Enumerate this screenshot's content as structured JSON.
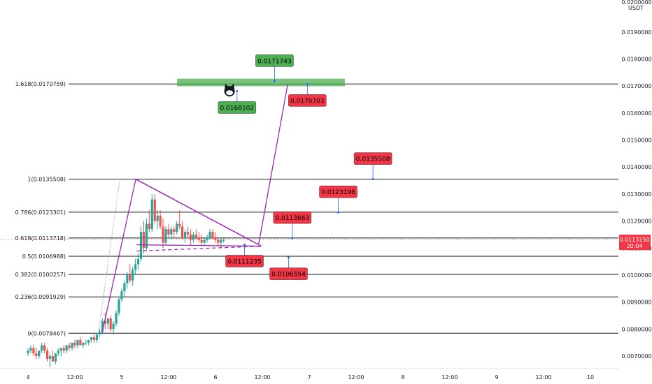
{
  "chart_data": {
    "type": "candlestick",
    "currency": "USDT",
    "current_price": "0.0113150",
    "countdown": "20:04",
    "y_ticks": [
      "0.0070000",
      "0.0080000",
      "0.0090000",
      "0.0100000",
      "0.0110000",
      "0.0120000",
      "0.0130000",
      "0.0140000",
      "0.0150000",
      "0.0160000",
      "0.0170000",
      "0.0180000",
      "0.0190000"
    ],
    "y_top_partial": "0.0200000",
    "x_ticks": [
      {
        "label": "4",
        "t": 0.0
      },
      {
        "label": "12:00",
        "t": 0.5
      },
      {
        "label": "5",
        "t": 1.0
      },
      {
        "label": "12:00",
        "t": 1.5
      },
      {
        "label": "6",
        "t": 2.0
      },
      {
        "label": "12:00",
        "t": 2.5
      },
      {
        "label": "7",
        "t": 3.0
      },
      {
        "label": "12:00",
        "t": 3.5
      },
      {
        "label": "8",
        "t": 4.0
      },
      {
        "label": "12:00",
        "t": 4.5
      },
      {
        "label": "9",
        "t": 5.0
      },
      {
        "label": "12:00",
        "t": 5.5
      },
      {
        "label": "10",
        "t": 6.0
      }
    ],
    "fib_levels": [
      {
        "label": "0(0.0078467)",
        "value": 0.0078467
      },
      {
        "label": "0.236(0.0091929)",
        "value": 0.0091929
      },
      {
        "label": "0.382(0.0100257)",
        "value": 0.0100257
      },
      {
        "label": "0.5(0.0106988)",
        "value": 0.0106988
      },
      {
        "label": "0.618(0.0113718)",
        "value": 0.0113718
      },
      {
        "label": "0.786(0.0123301)",
        "value": 0.0123301
      },
      {
        "label": "1(0.0135508)",
        "value": 0.0135508
      },
      {
        "label": "1.618(0.0170759)",
        "value": 0.0170759
      }
    ],
    "price_labels": [
      {
        "text": "0.0171743",
        "value": 0.0171743,
        "t": 2.63,
        "color": "green",
        "pos": "above"
      },
      {
        "text": "0.0168102",
        "value": 0.0168102,
        "t": 2.23,
        "color": "green",
        "pos": "below"
      },
      {
        "text": "0.0170703",
        "value": 0.0170703,
        "t": 2.98,
        "color": "red",
        "pos": "below"
      },
      {
        "text": "0.0135508",
        "value": 0.0135508,
        "t": 3.68,
        "color": "red",
        "pos": "above"
      },
      {
        "text": "0.0123198",
        "value": 0.0123198,
        "t": 3.31,
        "color": "red",
        "pos": "above"
      },
      {
        "text": "0.0113663",
        "value": 0.0113663,
        "t": 2.82,
        "color": "red",
        "pos": "above"
      },
      {
        "text": "0.0111235",
        "value": 0.0111235,
        "t": 2.31,
        "color": "red",
        "pos": "below"
      },
      {
        "text": "0.0106554",
        "value": 0.0106554,
        "t": 2.78,
        "color": "red",
        "pos": "below"
      }
    ],
    "target_zone": {
      "t0": 1.59,
      "t1": 3.38,
      "v0": 0.01699,
      "v1": 0.01727
    },
    "triangle_upper": [
      {
        "t": 1.15,
        "v": 0.01355
      },
      {
        "t": 2.49,
        "v": 0.01107
      }
    ],
    "triangle_base": [
      {
        "t": 1.16,
        "v": 0.01112
      },
      {
        "t": 2.49,
        "v": 0.01107
      }
    ],
    "triangle_lower_dashed": [
      {
        "t": 1.16,
        "v": 0.01089
      },
      {
        "t": 2.49,
        "v": 0.01107
      }
    ],
    "projection_path": [
      {
        "t": 0.79,
        "v": 0.00785
      },
      {
        "t": 1.15,
        "v": 0.01355
      },
      {
        "t": 2.46,
        "v": 0.01113
      },
      {
        "t": 2.77,
        "v": 0.01705
      }
    ],
    "dotted_fib_anchor": [
      {
        "t": 0.75,
        "v": 0.00785
      },
      {
        "t": 0.98,
        "v": 0.01355
      }
    ],
    "candles": [
      [
        0.0071,
        0.0073,
        0.007,
        0.0072
      ],
      [
        0.0072,
        0.0074,
        0.0071,
        0.0073
      ],
      [
        0.0073,
        0.0074,
        0.007,
        0.0071
      ],
      [
        0.0071,
        0.0073,
        0.0069,
        0.007
      ],
      [
        0.007,
        0.0072,
        0.0069,
        0.0072
      ],
      [
        0.0072,
        0.0075,
        0.0071,
        0.0074
      ],
      [
        0.0074,
        0.0075,
        0.0071,
        0.0072
      ],
      [
        0.0072,
        0.0073,
        0.0068,
        0.0069
      ],
      [
        0.0069,
        0.0071,
        0.0066,
        0.007
      ],
      [
        0.007,
        0.0072,
        0.0068,
        0.0068
      ],
      [
        0.0068,
        0.0071,
        0.0067,
        0.0071
      ],
      [
        0.0071,
        0.0073,
        0.007,
        0.0072
      ],
      [
        0.0072,
        0.0073,
        0.007,
        0.0073
      ],
      [
        0.0073,
        0.0074,
        0.0071,
        0.0072
      ],
      [
        0.0072,
        0.0074,
        0.0071,
        0.0074
      ],
      [
        0.0074,
        0.0075,
        0.0072,
        0.0073
      ],
      [
        0.0073,
        0.0075,
        0.0072,
        0.0075
      ],
      [
        0.0075,
        0.0076,
        0.0073,
        0.0074
      ],
      [
        0.0074,
        0.0076,
        0.0073,
        0.0076
      ],
      [
        0.0076,
        0.0077,
        0.0074,
        0.0074
      ],
      [
        0.0074,
        0.0075,
        0.0073,
        0.0075
      ],
      [
        0.0075,
        0.0076,
        0.0074,
        0.0075
      ],
      [
        0.0075,
        0.0076,
        0.0074,
        0.0076
      ],
      [
        0.0076,
        0.0077,
        0.0075,
        0.0077
      ],
      [
        0.0077,
        0.0078,
        0.0075,
        0.0076
      ],
      [
        0.0076,
        0.0078,
        0.0075,
        0.0078
      ],
      [
        0.0078,
        0.008,
        0.0077,
        0.0079
      ],
      [
        0.0079,
        0.0084,
        0.0078,
        0.0083
      ],
      [
        0.0083,
        0.0086,
        0.008,
        0.0082
      ],
      [
        0.0082,
        0.0084,
        0.008,
        0.0084
      ],
      [
        0.0084,
        0.0085,
        0.0079,
        0.008
      ],
      [
        0.008,
        0.0083,
        0.0078,
        0.0082
      ],
      [
        0.0082,
        0.0087,
        0.0081,
        0.0086
      ],
      [
        0.0086,
        0.0092,
        0.0085,
        0.0091
      ],
      [
        0.0091,
        0.0095,
        0.009,
        0.0094
      ],
      [
        0.0094,
        0.0098,
        0.0092,
        0.0097
      ],
      [
        0.0097,
        0.0101,
        0.0095,
        0.01
      ],
      [
        0.01,
        0.0104,
        0.0097,
        0.0098
      ],
      [
        0.0098,
        0.0103,
        0.0096,
        0.0102
      ],
      [
        0.0102,
        0.0106,
        0.01,
        0.0104
      ],
      [
        0.0104,
        0.0108,
        0.0102,
        0.0106
      ],
      [
        0.0106,
        0.0118,
        0.0105,
        0.0116
      ],
      [
        0.0116,
        0.012,
        0.0108,
        0.011
      ],
      [
        0.011,
        0.0121,
        0.0109,
        0.0119
      ],
      [
        0.0119,
        0.0124,
        0.0116,
        0.0117
      ],
      [
        0.0117,
        0.013,
        0.0116,
        0.0128
      ],
      [
        0.0128,
        0.013,
        0.0119,
        0.012
      ],
      [
        0.012,
        0.0124,
        0.0117,
        0.0122
      ],
      [
        0.0122,
        0.0124,
        0.0117,
        0.0118
      ],
      [
        0.0118,
        0.0121,
        0.011,
        0.0112
      ],
      [
        0.0112,
        0.0118,
        0.0111,
        0.0117
      ],
      [
        0.0117,
        0.0119,
        0.0114,
        0.0115
      ],
      [
        0.0115,
        0.0118,
        0.0113,
        0.0117
      ],
      [
        0.0117,
        0.0118,
        0.0114,
        0.0116
      ],
      [
        0.0116,
        0.012,
        0.0115,
        0.0119
      ],
      [
        0.0119,
        0.0124,
        0.0117,
        0.0118
      ],
      [
        0.0118,
        0.012,
        0.0113,
        0.0114
      ],
      [
        0.0114,
        0.0117,
        0.0112,
        0.0116
      ],
      [
        0.0116,
        0.0118,
        0.0114,
        0.0115
      ],
      [
        0.0115,
        0.0117,
        0.0111,
        0.0113
      ],
      [
        0.0113,
        0.0116,
        0.0112,
        0.0115
      ],
      [
        0.0115,
        0.0117,
        0.0113,
        0.0114
      ],
      [
        0.0114,
        0.0116,
        0.0112,
        0.0113
      ],
      [
        0.0113,
        0.0115,
        0.0111,
        0.0112
      ],
      [
        0.0112,
        0.0114,
        0.0111,
        0.0113
      ],
      [
        0.0113,
        0.0115,
        0.0112,
        0.0114
      ],
      [
        0.0114,
        0.0117,
        0.0113,
        0.0116
      ],
      [
        0.0116,
        0.0117,
        0.0113,
        0.0114
      ],
      [
        0.0114,
        0.0116,
        0.0112,
        0.0113
      ],
      [
        0.0113,
        0.0114,
        0.0111,
        0.0112
      ],
      [
        0.0112,
        0.0114,
        0.011,
        0.0113
      ],
      [
        0.0113,
        0.0114,
        0.0112,
        0.0113
      ]
    ],
    "candle_t0": 0.0,
    "candle_dt": 0.0294,
    "colors": {
      "up": "#26a69a",
      "down": "#ef5350",
      "green_label": "#4caf50",
      "red_label": "#f23645",
      "purple": "#9c27b0",
      "zone": "#4caf50",
      "price_line": "#f23645",
      "axis_text": "#131722",
      "fib_line": "#131722"
    }
  }
}
